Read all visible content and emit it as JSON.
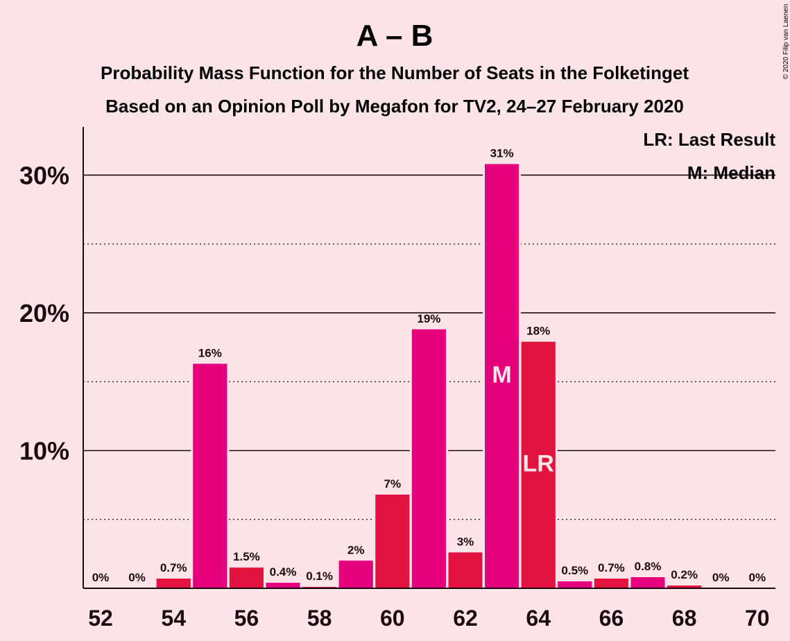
{
  "title": "A – B",
  "subtitle_line1": "Probability Mass Function for the Number of Seats in the Folketinget",
  "subtitle_line2": "Based on an Opinion Poll by Megafon for TV2, 24–27 February 2020",
  "copyright": "© 2020 Filip van Laenen",
  "legend": {
    "last_result": "LR: Last Result",
    "median": "M: Median"
  },
  "colors": {
    "background": "#fce4e8",
    "magenta": "#e6007e",
    "red": "#e2143f",
    "text": "#1a0a10"
  },
  "chart_data": {
    "type": "bar",
    "title": "A – B",
    "xlabel": "",
    "ylabel": "",
    "x": [
      52,
      53,
      54,
      55,
      56,
      57,
      58,
      59,
      60,
      61,
      62,
      63,
      64,
      65,
      66,
      67,
      68,
      69,
      70
    ],
    "values": [
      0,
      0,
      0.7,
      16.3,
      1.5,
      0.4,
      0.1,
      2.0,
      6.8,
      18.8,
      2.6,
      30.8,
      17.9,
      0.5,
      0.7,
      0.8,
      0.2,
      0,
      0
    ],
    "labels": [
      "0%",
      "0%",
      "0.7%",
      "16%",
      "1.5%",
      "0.4%",
      "0.1%",
      "2%",
      "7%",
      "19%",
      "3%",
      "31%",
      "18%",
      "0.5%",
      "0.7%",
      "0.8%",
      "0.2%",
      "0%",
      "0%"
    ],
    "bar_colors": [
      "magenta",
      "red",
      "red",
      "magenta",
      "red",
      "magenta",
      "red",
      "magenta",
      "red",
      "magenta",
      "red",
      "magenta",
      "red",
      "magenta",
      "red",
      "magenta",
      "red",
      "magenta",
      "red"
    ],
    "x_tick_labels": [
      "52",
      "54",
      "56",
      "58",
      "60",
      "62",
      "64",
      "66",
      "68",
      "70"
    ],
    "y_ticks": [
      10,
      20,
      30
    ],
    "y_tick_labels": [
      "10%",
      "20%",
      "30%"
    ],
    "ylim": [
      0,
      33.5
    ],
    "grid": "solid at 10% steps, dotted at 5% steps",
    "median_seat": 63,
    "median_label": "M",
    "last_result_seat": 64,
    "last_result_label": "LR",
    "legend_placement": "top-right"
  }
}
